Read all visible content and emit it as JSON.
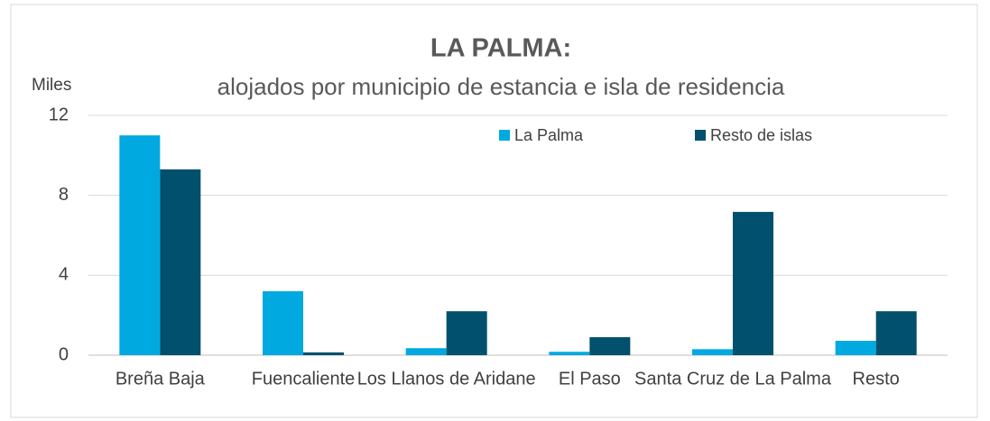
{
  "chart_data": {
    "type": "bar",
    "title": "LA PALMA:",
    "subtitle": "alojados por municipio de estancia e isla de residencia",
    "y_label": "Miles",
    "categories": [
      "Breña Baja",
      "Fuencaliente",
      "Los Llanos de Aridane",
      "El Paso",
      "Santa Cruz de La Palma",
      "Resto"
    ],
    "series": [
      {
        "name": "La Palma",
        "color": "#00a9e0",
        "values": [
          11.0,
          3.2,
          0.35,
          0.17,
          0.3,
          0.72
        ]
      },
      {
        "name": "Resto de islas",
        "color": "#00506e",
        "values": [
          9.3,
          0.14,
          2.2,
          0.9,
          7.17,
          2.2
        ]
      }
    ],
    "ylim": [
      0,
      12
    ],
    "yticks": [
      0,
      4,
      8,
      12
    ],
    "grid": true,
    "legend": "top"
  }
}
